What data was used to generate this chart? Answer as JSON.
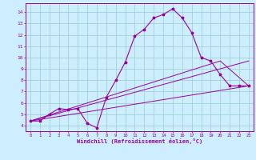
{
  "bg_color": "#cceeff",
  "line_color": "#990099",
  "grid_color": "#99cccc",
  "xlim": [
    -0.5,
    23.5
  ],
  "ylim": [
    3.5,
    14.8
  ],
  "xticks": [
    0,
    1,
    2,
    3,
    4,
    5,
    6,
    7,
    8,
    9,
    10,
    11,
    12,
    13,
    14,
    15,
    16,
    17,
    18,
    19,
    20,
    21,
    22,
    23
  ],
  "yticks": [
    4,
    5,
    6,
    7,
    8,
    9,
    10,
    11,
    12,
    13,
    14
  ],
  "xlabel": "Windchill (Refroidissement éolien,°C)",
  "curve1_x": [
    0,
    1,
    2,
    3,
    4,
    5,
    6,
    7,
    8,
    9,
    10,
    11,
    12,
    13,
    14,
    15,
    16,
    17,
    18,
    19,
    20,
    21,
    22,
    23
  ],
  "curve1_y": [
    4.4,
    4.4,
    5.0,
    5.5,
    5.4,
    5.5,
    4.2,
    3.8,
    6.5,
    8.0,
    9.6,
    11.9,
    12.5,
    13.5,
    13.8,
    14.3,
    13.5,
    12.2,
    10.0,
    9.7,
    8.5,
    7.5,
    7.5,
    7.5
  ],
  "curve2_x": [
    0,
    23
  ],
  "curve2_y": [
    4.4,
    7.5
  ],
  "curve3_x": [
    0,
    20,
    23
  ],
  "curve3_y": [
    4.4,
    9.7,
    7.5
  ],
  "curve4_x": [
    0,
    23
  ],
  "curve4_y": [
    4.4,
    9.7
  ]
}
